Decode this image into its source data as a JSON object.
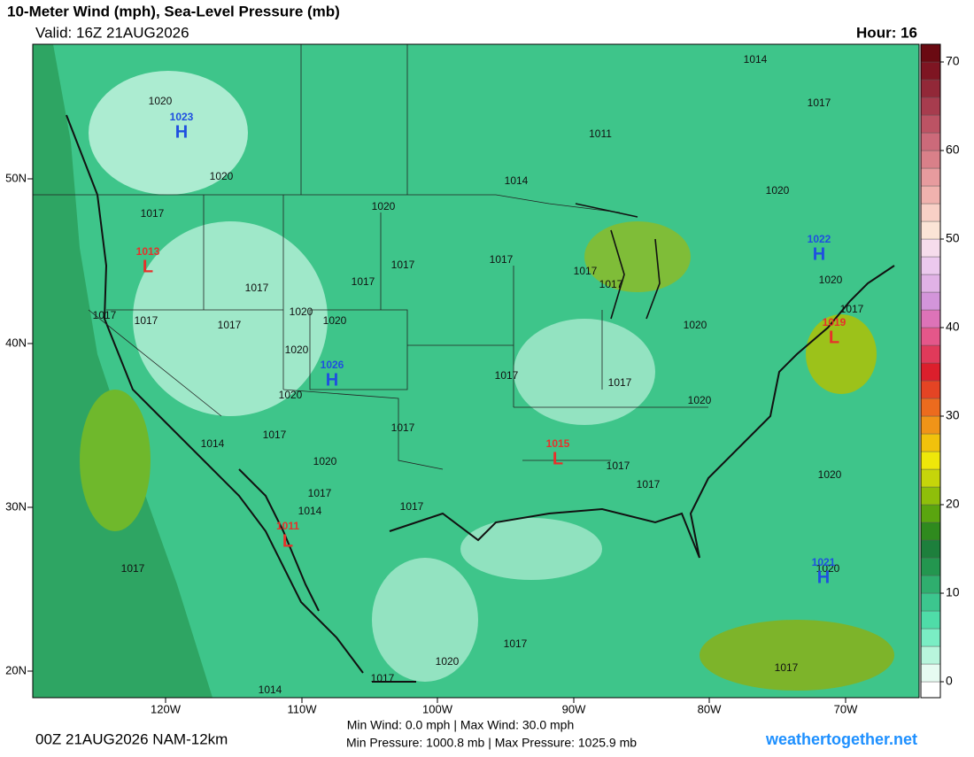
{
  "header": {
    "title": "10-Meter Wind (mph), Sea-Level Pressure (mb)",
    "valid": "Valid: 16Z 21AUG2026",
    "hour": "Hour: 16"
  },
  "axes": {
    "lat_labels": [
      "50N",
      "40N",
      "30N",
      "20N"
    ],
    "lon_labels": [
      "120W",
      "110W",
      "100W",
      "90W",
      "80W",
      "70W"
    ]
  },
  "centers": [
    {
      "type": "H",
      "value": 1023,
      "color": "#1f4fe0"
    },
    {
      "type": "L",
      "value": 1013,
      "color": "#e8302a"
    },
    {
      "type": "H",
      "value": 1026,
      "color": "#1f4fe0"
    },
    {
      "type": "L",
      "value": 1015,
      "color": "#e8302a"
    },
    {
      "type": "L",
      "value": 1011,
      "color": "#e8302a"
    },
    {
      "type": "H",
      "value": 1022,
      "color": "#1f4fe0"
    },
    {
      "type": "L",
      "value": 1019,
      "color": "#e8302a"
    },
    {
      "type": "H",
      "value": 1021,
      "color": "#1f4fe0"
    }
  ],
  "isobar_labels": [
    1020,
    1020,
    1014,
    1017,
    1011,
    1014,
    1020,
    1020,
    1017,
    1017,
    1017,
    1017,
    1017,
    1017,
    1017,
    1020,
    1020,
    1017,
    1020,
    1020,
    1020,
    1017,
    1017,
    1020,
    1020,
    1017,
    1017,
    1014,
    1020,
    1017,
    1017,
    1020,
    1017,
    1014,
    1017,
    1017,
    1020,
    1017,
    1020,
    1017,
    1014,
    1017,
    1017,
    1017,
    1017
  ],
  "colorbar": {
    "ticks": [
      0,
      10,
      20,
      30,
      40,
      50,
      60,
      70
    ],
    "range": [
      -1.8,
      72
    ],
    "colors": [
      "#ffffff",
      "#e6fbf1",
      "#b8f5dc",
      "#7aedc4",
      "#4fdca8",
      "#3cc68e",
      "#2fae6e",
      "#23964f",
      "#1d7f3c",
      "#2f8a1e",
      "#5aa50f",
      "#8fbf0a",
      "#c6d50a",
      "#efe70a",
      "#f1c20c",
      "#f09418",
      "#ec6b1e",
      "#e44424",
      "#dc1f2c",
      "#e03a5a",
      "#e4578a",
      "#dd73b8",
      "#d395da",
      "#e1b2e6",
      "#ecc9ee",
      "#f6dcec",
      "#fbe4d6",
      "#f8d0c6",
      "#f0b2ae",
      "#e79b9e",
      "#d98089",
      "#cc6a7a",
      "#bc5364",
      "#a73c4e",
      "#922838",
      "#7e1522",
      "#6a0a12"
    ]
  },
  "footer": {
    "run": "00Z 21AUG2026 NAM-12km",
    "wind": "Min Wind:  0.0 mph | Max Wind: 30.0 mph",
    "pressure": "Min Pressure: 1000.8 mb | Max Pressure: 1025.9 mb",
    "site": "weathertogether.net"
  }
}
